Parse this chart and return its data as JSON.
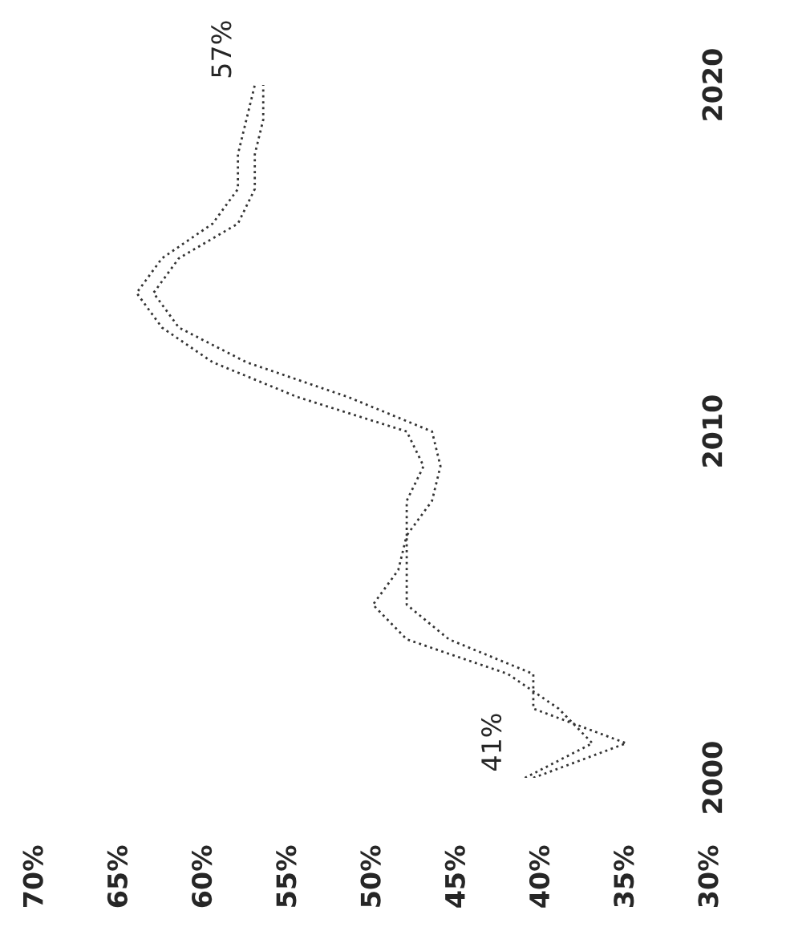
{
  "chart_data": {
    "type": "line",
    "series": [
      {
        "color": "#333333",
        "x": [
          41,
          37,
          39,
          42,
          48,
          50,
          48.5,
          48,
          48,
          47,
          48,
          54.5,
          59.5,
          62.5,
          64,
          62.5,
          59.5,
          58,
          58,
          57.5,
          57
        ],
        "values": [
          2000,
          2001,
          2002,
          2003,
          2004,
          2005,
          2006,
          2007,
          2008,
          2009,
          2010,
          2011,
          2012,
          2013,
          2014,
          2015,
          2016,
          2017,
          2018,
          2019,
          2020
        ]
      },
      {
        "color": "#333333",
        "x": [
          40.5,
          35,
          40.5,
          40.5,
          45.5,
          48,
          48,
          48,
          46.5,
          46,
          46.5,
          51.5,
          57.5,
          61.5,
          63,
          61.5,
          58,
          57,
          57,
          56.5,
          56.5
        ],
        "values": [
          2000,
          2001,
          2002,
          2003,
          2004,
          2005,
          2006,
          2007,
          2008,
          2009,
          2010,
          2011,
          2012,
          2013,
          2014,
          2015,
          2016,
          2017,
          2018,
          2019,
          2020
        ]
      }
    ],
    "ylim": [
      2000,
      2020
    ],
    "yticks": [
      2000,
      2010,
      2020
    ],
    "xlim": [
      70,
      30
    ],
    "xticks": [
      {
        "value": 70,
        "label": "70%"
      },
      {
        "value": 65,
        "label": "65%"
      },
      {
        "value": 60,
        "label": "60%"
      },
      {
        "value": 55,
        "label": "55%"
      },
      {
        "value": 50,
        "label": "50%"
      },
      {
        "value": 45,
        "label": "45%"
      },
      {
        "value": 40,
        "label": "40%"
      },
      {
        "value": 35,
        "label": "35%"
      },
      {
        "value": 30,
        "label": "30%"
      }
    ],
    "line_style": "dotted",
    "annotations": [
      {
        "text": "41%",
        "x": 41,
        "y": 2000
      },
      {
        "text": "57%",
        "x": 57,
        "y": 2020
      }
    ]
  }
}
